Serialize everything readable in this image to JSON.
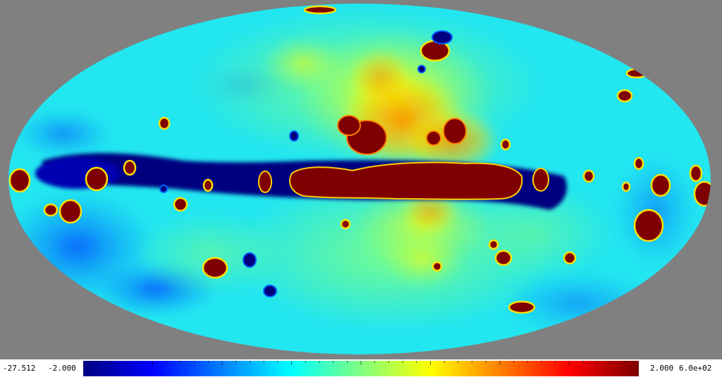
{
  "map": {
    "projection": "mollweide",
    "background_color": "#808080",
    "colormap": "jet",
    "colormap_stops": [
      "#00007f",
      "#0000ff",
      "#0080ff",
      "#00ffff",
      "#80ff80",
      "#ffff00",
      "#ff8000",
      "#ff0000",
      "#7f0000"
    ]
  },
  "colorbar": {
    "min_label": "-27.512",
    "low_label": "-2.000",
    "high_label": "2.000",
    "max_label": "6.0e+02",
    "tick_count": 40
  }
}
